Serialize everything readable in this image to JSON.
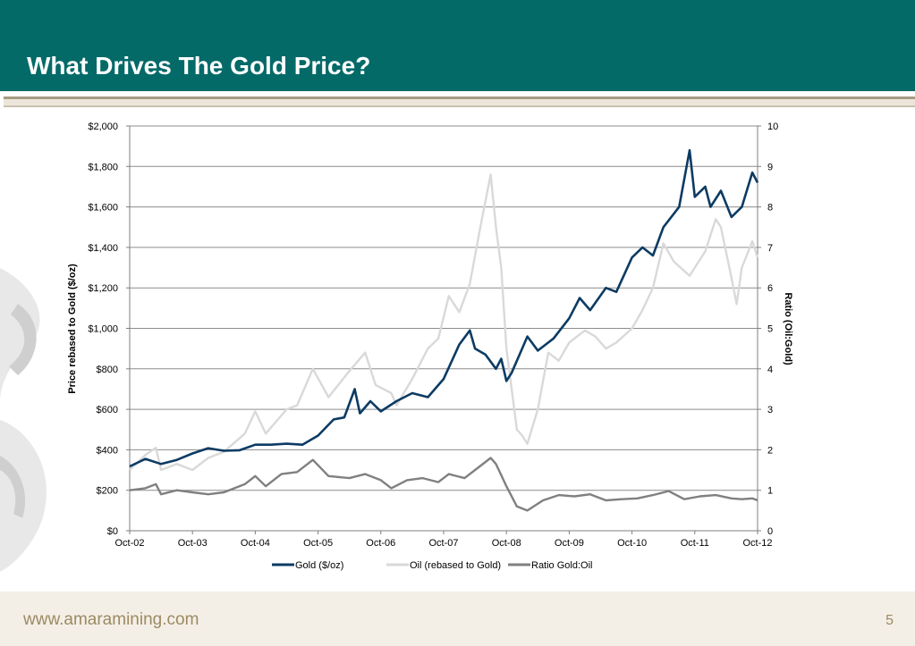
{
  "slide": {
    "title": "What Drives The Gold Price?",
    "footer_url": "www.amaramining.com",
    "page_number": "5"
  },
  "colors": {
    "header_bg": "#046a68",
    "footer_bg": "#f4efe6",
    "gold_series": "#0c3b63",
    "oil_series": "#d9d9d9",
    "ratio_series": "#808080"
  },
  "chart_data": {
    "type": "line",
    "title": "",
    "xlabel": "",
    "ylabel": "Price rebased to Gold ($/oz)",
    "y2label": "Ratio (Oil:Gold)",
    "x_ticks": [
      "Oct-02",
      "Oct-03",
      "Oct-04",
      "Oct-05",
      "Oct-06",
      "Oct-07",
      "Oct-08",
      "Oct-09",
      "Oct-10",
      "Oct-11",
      "Oct-12"
    ],
    "y_ticks": [
      "$0",
      "$200",
      "$400",
      "$600",
      "$800",
      "$1,000",
      "$1,200",
      "$1,400",
      "$1,600",
      "$1,800",
      "$2,000"
    ],
    "y2_ticks": [
      "0",
      "1",
      "2",
      "3",
      "4",
      "5",
      "6",
      "7",
      "8",
      "9",
      "10"
    ],
    "ylim": [
      0,
      2000
    ],
    "y2lim": [
      0,
      10
    ],
    "xlim": [
      "2002-10",
      "2012-10"
    ],
    "grid": "horizontal",
    "legend_position": "bottom",
    "series": [
      {
        "name": "Gold ($/oz)",
        "axis": "left",
        "color": "#0c3b63",
        "points": [
          [
            "2002-10",
            318
          ],
          [
            "2003-01",
            355
          ],
          [
            "2003-04",
            330
          ],
          [
            "2003-07",
            350
          ],
          [
            "2003-10",
            382
          ],
          [
            "2004-01",
            408
          ],
          [
            "2004-04",
            395
          ],
          [
            "2004-07",
            398
          ],
          [
            "2004-10",
            425
          ],
          [
            "2005-01",
            425
          ],
          [
            "2005-04",
            430
          ],
          [
            "2005-07",
            425
          ],
          [
            "2005-10",
            470
          ],
          [
            "2006-01",
            550
          ],
          [
            "2006-03",
            560
          ],
          [
            "2006-05",
            700
          ],
          [
            "2006-06",
            580
          ],
          [
            "2006-08",
            640
          ],
          [
            "2006-10",
            590
          ],
          [
            "2007-01",
            640
          ],
          [
            "2007-04",
            680
          ],
          [
            "2007-07",
            660
          ],
          [
            "2007-10",
            750
          ],
          [
            "2008-01",
            920
          ],
          [
            "2008-03",
            990
          ],
          [
            "2008-04",
            900
          ],
          [
            "2008-06",
            870
          ],
          [
            "2008-08",
            800
          ],
          [
            "2008-09",
            850
          ],
          [
            "2008-10",
            740
          ],
          [
            "2008-11",
            780
          ],
          [
            "2009-01",
            900
          ],
          [
            "2009-02",
            960
          ],
          [
            "2009-04",
            890
          ],
          [
            "2009-07",
            950
          ],
          [
            "2009-10",
            1050
          ],
          [
            "2009-12",
            1150
          ],
          [
            "2010-02",
            1090
          ],
          [
            "2010-05",
            1200
          ],
          [
            "2010-07",
            1180
          ],
          [
            "2010-10",
            1350
          ],
          [
            "2010-12",
            1400
          ],
          [
            "2011-02",
            1360
          ],
          [
            "2011-04",
            1500
          ],
          [
            "2011-07",
            1600
          ],
          [
            "2011-09",
            1880
          ],
          [
            "2011-10",
            1650
          ],
          [
            "2011-12",
            1700
          ],
          [
            "2012-01",
            1600
          ],
          [
            "2012-03",
            1680
          ],
          [
            "2012-05",
            1550
          ],
          [
            "2012-07",
            1600
          ],
          [
            "2012-09",
            1770
          ],
          [
            "2012-10",
            1720
          ]
        ]
      },
      {
        "name": "Oil (rebased to Gold)",
        "axis": "left",
        "color": "#d9d9d9",
        "points": [
          [
            "2002-10",
            300
          ],
          [
            "2003-01",
            375
          ],
          [
            "2003-03",
            410
          ],
          [
            "2003-04",
            300
          ],
          [
            "2003-07",
            330
          ],
          [
            "2003-10",
            300
          ],
          [
            "2004-01",
            360
          ],
          [
            "2004-04",
            390
          ],
          [
            "2004-08",
            480
          ],
          [
            "2004-10",
            590
          ],
          [
            "2004-12",
            480
          ],
          [
            "2005-04",
            600
          ],
          [
            "2005-06",
            620
          ],
          [
            "2005-09",
            800
          ],
          [
            "2005-12",
            660
          ],
          [
            "2006-04",
            790
          ],
          [
            "2006-07",
            880
          ],
          [
            "2006-09",
            720
          ],
          [
            "2006-12",
            680
          ],
          [
            "2007-01",
            620
          ],
          [
            "2007-04",
            750
          ],
          [
            "2007-07",
            900
          ],
          [
            "2007-09",
            950
          ],
          [
            "2007-11",
            1160
          ],
          [
            "2008-01",
            1080
          ],
          [
            "2008-03",
            1220
          ],
          [
            "2008-05",
            1500
          ],
          [
            "2008-07",
            1760
          ],
          [
            "2008-08",
            1500
          ],
          [
            "2008-09",
            1300
          ],
          [
            "2008-10",
            900
          ],
          [
            "2008-12",
            500
          ],
          [
            "2009-01",
            470
          ],
          [
            "2009-02",
            430
          ],
          [
            "2009-04",
            600
          ],
          [
            "2009-06",
            880
          ],
          [
            "2009-08",
            840
          ],
          [
            "2009-10",
            930
          ],
          [
            "2010-01",
            990
          ],
          [
            "2010-03",
            960
          ],
          [
            "2010-05",
            900
          ],
          [
            "2010-07",
            930
          ],
          [
            "2010-10",
            1000
          ],
          [
            "2010-12",
            1090
          ],
          [
            "2011-02",
            1200
          ],
          [
            "2011-04",
            1420
          ],
          [
            "2011-06",
            1330
          ],
          [
            "2011-09",
            1260
          ],
          [
            "2011-12",
            1380
          ],
          [
            "2012-02",
            1540
          ],
          [
            "2012-03",
            1500
          ],
          [
            "2012-05",
            1250
          ],
          [
            "2012-06",
            1120
          ],
          [
            "2012-07",
            1300
          ],
          [
            "2012-09",
            1430
          ],
          [
            "2012-10",
            1350
          ]
        ]
      },
      {
        "name": "Ratio Gold:Oil",
        "axis": "right",
        "color": "#808080",
        "points": [
          [
            "2002-10",
            1.0
          ],
          [
            "2003-01",
            1.05
          ],
          [
            "2003-03",
            1.15
          ],
          [
            "2003-04",
            0.9
          ],
          [
            "2003-07",
            1.0
          ],
          [
            "2003-10",
            0.95
          ],
          [
            "2004-01",
            0.9
          ],
          [
            "2004-04",
            0.95
          ],
          [
            "2004-08",
            1.15
          ],
          [
            "2004-10",
            1.35
          ],
          [
            "2004-12",
            1.1
          ],
          [
            "2005-03",
            1.4
          ],
          [
            "2005-06",
            1.45
          ],
          [
            "2005-09",
            1.75
          ],
          [
            "2005-12",
            1.35
          ],
          [
            "2006-04",
            1.3
          ],
          [
            "2006-07",
            1.4
          ],
          [
            "2006-10",
            1.25
          ],
          [
            "2006-12",
            1.05
          ],
          [
            "2007-03",
            1.25
          ],
          [
            "2007-06",
            1.3
          ],
          [
            "2007-09",
            1.2
          ],
          [
            "2007-11",
            1.4
          ],
          [
            "2008-02",
            1.3
          ],
          [
            "2008-05",
            1.6
          ],
          [
            "2008-07",
            1.8
          ],
          [
            "2008-08",
            1.65
          ],
          [
            "2008-10",
            1.1
          ],
          [
            "2008-12",
            0.6
          ],
          [
            "2009-02",
            0.5
          ],
          [
            "2009-05",
            0.75
          ],
          [
            "2009-08",
            0.88
          ],
          [
            "2009-11",
            0.85
          ],
          [
            "2010-02",
            0.9
          ],
          [
            "2010-05",
            0.75
          ],
          [
            "2010-08",
            0.78
          ],
          [
            "2010-11",
            0.8
          ],
          [
            "2011-02",
            0.88
          ],
          [
            "2011-05",
            0.98
          ],
          [
            "2011-08",
            0.78
          ],
          [
            "2011-11",
            0.85
          ],
          [
            "2012-02",
            0.88
          ],
          [
            "2012-05",
            0.8
          ],
          [
            "2012-07",
            0.78
          ],
          [
            "2012-09",
            0.8
          ],
          [
            "2012-10",
            0.75
          ]
        ]
      }
    ]
  }
}
